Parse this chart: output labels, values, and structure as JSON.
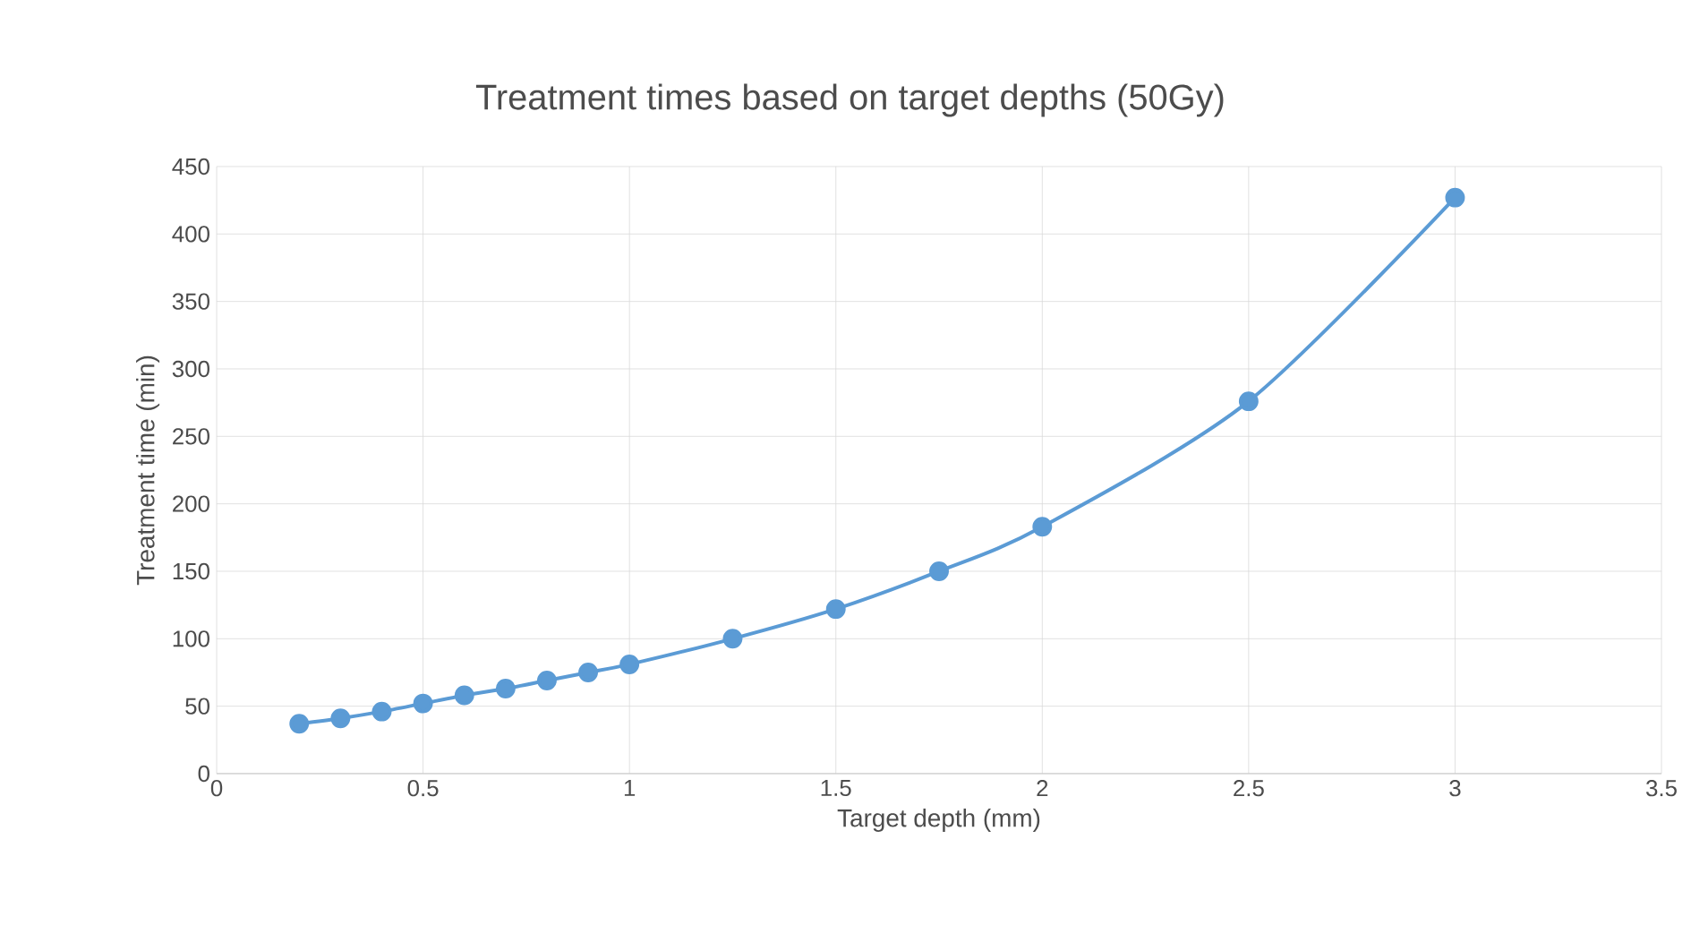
{
  "chart_data": {
    "type": "line",
    "title": "Treatment times based on target depths (50Gy)",
    "xlabel": "Target depth (mm)",
    "ylabel": "Treatment time (min)",
    "x": [
      0.2,
      0.3,
      0.4,
      0.5,
      0.6,
      0.7,
      0.8,
      0.9,
      1.0,
      1.25,
      1.5,
      1.75,
      2.0,
      2.5,
      3.0
    ],
    "series": [
      {
        "color": "#5b9bd5",
        "values": [
          37,
          41,
          46,
          52,
          58,
          63,
          69,
          75,
          81,
          100,
          122,
          150,
          183,
          276,
          427
        ]
      }
    ],
    "xlim": [
      0,
      3.5
    ],
    "xticks": [
      0,
      0.5,
      1,
      1.5,
      2,
      2.5,
      3,
      3.5
    ],
    "ylim": [
      0,
      450
    ],
    "yticks": [
      0,
      50,
      100,
      150,
      200,
      250,
      300,
      350,
      400,
      450
    ],
    "grid": true,
    "marker": "circle",
    "line_style": "solid"
  }
}
